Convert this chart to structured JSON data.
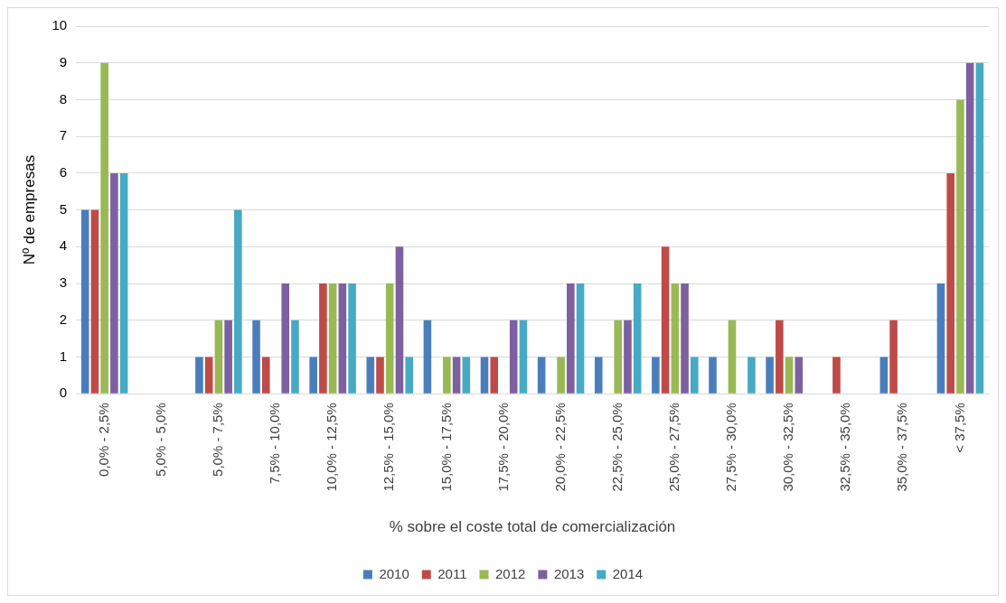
{
  "chart_data": {
    "type": "bar",
    "xlabel": "% sobre el coste total de comercialización",
    "ylabel": "Nº de empresas",
    "categories": [
      "0,0% - 2,5%",
      "5,0% - 5,0%",
      "5,0% - 7,5%",
      "7,5% - 10,0%",
      "10,0% - 12,5%",
      "12,5% - 15,0%",
      "15,0% - 17,5%",
      "17,5% - 20,0%",
      "20,0% - 22,5%",
      "22,5% - 25,0%",
      "25,0% - 27,5%",
      "27,5% - 30,0%",
      "30,0% - 32,5%",
      "32,5% - 35,0%",
      "35,0% - 37,5%",
      "< 37,5%"
    ],
    "series": [
      {
        "name": "2010",
        "color": "#4a7ebb",
        "values": [
          5,
          0,
          1,
          2,
          1,
          1,
          2,
          1,
          1,
          1,
          1,
          1,
          1,
          0,
          1,
          3
        ]
      },
      {
        "name": "2011",
        "color": "#be4b48",
        "values": [
          5,
          0,
          1,
          1,
          3,
          1,
          0,
          1,
          0,
          0,
          4,
          0,
          2,
          1,
          2,
          6
        ]
      },
      {
        "name": "2012",
        "color": "#98b954",
        "values": [
          9,
          0,
          2,
          0,
          3,
          3,
          1,
          0,
          1,
          2,
          3,
          2,
          1,
          0,
          0,
          8
        ]
      },
      {
        "name": "2013",
        "color": "#7d60a0",
        "values": [
          6,
          0,
          2,
          3,
          3,
          4,
          1,
          2,
          3,
          2,
          3,
          0,
          1,
          0,
          0,
          9
        ]
      },
      {
        "name": "2014",
        "color": "#46aac5",
        "values": [
          6,
          0,
          5,
          2,
          3,
          1,
          1,
          2,
          3,
          3,
          1,
          1,
          0,
          0,
          0,
          9
        ]
      }
    ],
    "ylim": [
      0,
      10
    ],
    "yticks": [
      0,
      1,
      2,
      3,
      4,
      5,
      6,
      7,
      8,
      9,
      10
    ],
    "grid": "y",
    "legend": "bottom"
  }
}
